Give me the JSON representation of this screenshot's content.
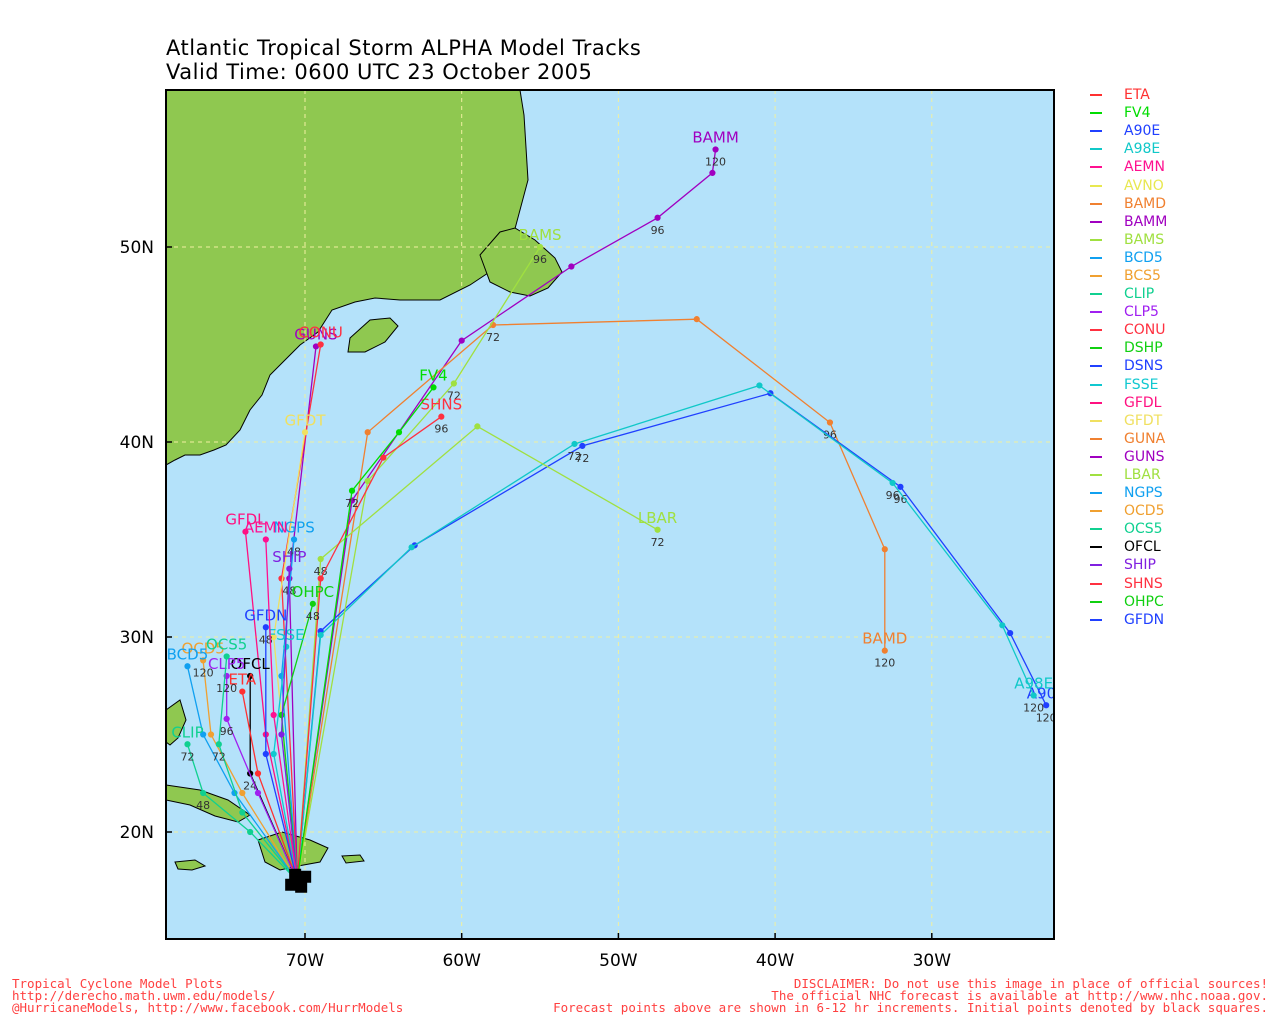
{
  "header": {
    "title_line1": "Atlantic Tropical Storm ALPHA Model Tracks",
    "title_line2": "Valid Time: 0600 UTC 23 October 2005"
  },
  "map": {
    "lon_labels": [
      "70W",
      "60W",
      "50W",
      "40W",
      "30W"
    ],
    "lat_labels": [
      "50N",
      "40N",
      "30N",
      "20N"
    ],
    "ocean_color": "#b4e2fa",
    "land_color": "#8fc850",
    "grid_color": "#f0f0a0"
  },
  "legend": [
    {
      "name": "ETA",
      "color": "#ff3030"
    },
    {
      "name": "FV4",
      "color": "#00dd00"
    },
    {
      "name": "A90E",
      "color": "#2040ff"
    },
    {
      "name": "A98E",
      "color": "#10c8c8"
    },
    {
      "name": "AEMN",
      "color": "#ff1090"
    },
    {
      "name": "AVNO",
      "color": "#e8e850"
    },
    {
      "name": "BAMD",
      "color": "#f08030"
    },
    {
      "name": "BAMM",
      "color": "#a000c0"
    },
    {
      "name": "BAMS",
      "color": "#a0e040"
    },
    {
      "name": "BCD5",
      "color": "#10a0f0"
    },
    {
      "name": "BCS5",
      "color": "#f0a030"
    },
    {
      "name": "CLIP",
      "color": "#10d090"
    },
    {
      "name": "CLP5",
      "color": "#a020f0"
    },
    {
      "name": "CONU",
      "color": "#ff3040"
    },
    {
      "name": "DSHP",
      "color": "#10d010"
    },
    {
      "name": "DSNS",
      "color": "#2040ff"
    },
    {
      "name": "FSSE",
      "color": "#10c8d0"
    },
    {
      "name": "GFDL",
      "color": "#ff1080"
    },
    {
      "name": "GFDT",
      "color": "#f0e060"
    },
    {
      "name": "GUNA",
      "color": "#f08030"
    },
    {
      "name": "GUNS",
      "color": "#a000c0"
    },
    {
      "name": "LBAR",
      "color": "#a0e040"
    },
    {
      "name": "NGPS",
      "color": "#10a0f0"
    },
    {
      "name": "OCD5",
      "color": "#f0a030"
    },
    {
      "name": "OCS5",
      "color": "#10d090"
    },
    {
      "name": "OFCL",
      "color": "#000000"
    },
    {
      "name": "SHIP",
      "color": "#8020e0"
    },
    {
      "name": "SHNS",
      "color": "#ff3040"
    },
    {
      "name": "OHPC",
      "color": "#10d010"
    },
    {
      "name": "GFDN",
      "color": "#2040ff"
    }
  ],
  "tracks": [
    {
      "name": "BAMM",
      "color": "#a000c0",
      "label": "BAMM",
      "points": [
        [
          -70.5,
          17.5
        ],
        [
          -67,
          37
        ],
        [
          -60,
          45.2
        ],
        [
          -53,
          49
        ],
        [
          -47.5,
          51.5
        ],
        [
          -44,
          53.8
        ],
        [
          -43.8,
          55
        ]
      ],
      "hours": [
        [
          "96",
          -47.5,
          51.5
        ],
        [
          "120",
          -43.8,
          55
        ]
      ]
    },
    {
      "name": "BAMD",
      "color": "#f08030",
      "label": "BAMD",
      "points": [
        [
          -70.5,
          17.5
        ],
        [
          -66,
          40.5
        ],
        [
          -58,
          46
        ],
        [
          -45,
          46.3
        ],
        [
          -36.5,
          41
        ],
        [
          -33,
          34.5
        ],
        [
          -33,
          29.3
        ]
      ],
      "hours": [
        [
          "72",
          -58,
          46
        ],
        [
          "96",
          -36.5,
          41
        ],
        [
          "120",
          -33,
          29.3
        ]
      ]
    },
    {
      "name": "A90E",
      "color": "#2040ff",
      "label": "A90E",
      "points": [
        [
          -70.5,
          17.5
        ],
        [
          -69,
          30.3
        ],
        [
          -63,
          34.7
        ],
        [
          -52.3,
          39.8
        ],
        [
          -40.3,
          42.5
        ],
        [
          -32,
          37.7
        ],
        [
          -25,
          30.2
        ],
        [
          -22.7,
          26.5
        ]
      ],
      "hours": [
        [
          "72",
          -52.3,
          39.8
        ],
        [
          "96",
          -32,
          37.7
        ],
        [
          "120",
          -22.7,
          26.5
        ]
      ]
    },
    {
      "name": "A98E",
      "color": "#10c8c8",
      "label": "A98E",
      "points": [
        [
          -70.5,
          17.5
        ],
        [
          -69,
          30.1
        ],
        [
          -63.2,
          34.6
        ],
        [
          -52.8,
          39.9
        ],
        [
          -41,
          42.9
        ],
        [
          -32.5,
          37.9
        ],
        [
          -25.5,
          30.6
        ],
        [
          -23.5,
          27
        ]
      ],
      "hours": [
        [
          "72",
          -52.8,
          39.9
        ],
        [
          "96",
          -32.5,
          37.9
        ],
        [
          "120",
          -23.5,
          27
        ]
      ]
    },
    {
      "name": "LBAR",
      "color": "#a0e040",
      "label": "LBAR",
      "points": [
        [
          -70.5,
          17.5
        ],
        [
          -69,
          34
        ],
        [
          -59,
          40.8
        ],
        [
          -47.5,
          35.5
        ]
      ],
      "hours": [
        [
          "48",
          -69,
          34
        ],
        [
          "72",
          -47.5,
          35.5
        ]
      ]
    },
    {
      "name": "BAMS",
      "color": "#a0e040",
      "label": "BAMS",
      "points": [
        [
          -70.5,
          17.5
        ],
        [
          -66,
          38
        ],
        [
          -60.5,
          43
        ],
        [
          -55,
          50
        ]
      ],
      "hours": [
        [
          "72",
          -60.5,
          43
        ],
        [
          "96",
          -55,
          50
        ]
      ]
    },
    {
      "name": "SHNS",
      "color": "#ff3040",
      "label": "SHNS",
      "points": [
        [
          -70.5,
          17.5
        ],
        [
          -69,
          33
        ],
        [
          -65,
          39.2
        ],
        [
          -61.3,
          41.3
        ]
      ],
      "hours": [
        [
          "96",
          -61.3,
          41.3
        ]
      ]
    },
    {
      "name": "FV4",
      "color": "#00dd00",
      "label": "FV4",
      "points": [
        [
          -70.5,
          17.5
        ],
        [
          -67,
          37.5
        ],
        [
          -64,
          40.5
        ],
        [
          -61.8,
          42.8
        ]
      ],
      "hours": [
        [
          "72",
          -67,
          37.5
        ]
      ]
    },
    {
      "name": "GUNS",
      "color": "#a000c0",
      "label": "GUNS",
      "points": [
        [
          -70.5,
          17.5
        ],
        [
          -71,
          33
        ],
        [
          -69.3,
          44.9
        ]
      ],
      "hours": [
        [
          "48",
          -71,
          33
        ]
      ]
    },
    {
      "name": "CONU",
      "color": "#ff3040",
      "label": "CONU",
      "points": [
        [
          -70.5,
          17.5
        ],
        [
          -71.5,
          33
        ],
        [
          -69,
          45
        ]
      ],
      "hours": []
    },
    {
      "name": "GFDT",
      "color": "#f0e060",
      "label": "GFDT",
      "points": [
        [
          -70.5,
          17.5
        ],
        [
          -72,
          30
        ],
        [
          -70,
          40.5
        ]
      ],
      "hours": []
    },
    {
      "name": "GFDL",
      "color": "#ff1080",
      "label": "GFDL",
      "points": [
        [
          -70.5,
          17.5
        ],
        [
          -72.5,
          25
        ],
        [
          -73.8,
          35.4
        ]
      ],
      "hours": []
    },
    {
      "name": "NGPS",
      "color": "#10a0f0",
      "label": "NGPS",
      "points": [
        [
          -70.5,
          17.5
        ],
        [
          -71.5,
          28
        ],
        [
          -70.7,
          35
        ]
      ],
      "hours": [
        [
          "48",
          -70.7,
          35
        ]
      ]
    },
    {
      "name": "OHPC",
      "color": "#10d010",
      "label": "OHPC",
      "points": [
        [
          -70.5,
          17.5
        ],
        [
          -71.5,
          26
        ],
        [
          -69.5,
          31.7
        ]
      ],
      "hours": [
        [
          "48",
          -69.5,
          31.7
        ]
      ]
    },
    {
      "name": "FSSE",
      "color": "#10c8d0",
      "label": "FSSE",
      "points": [
        [
          -70.5,
          17.5
        ],
        [
          -72,
          24
        ],
        [
          -71.2,
          29.5
        ]
      ],
      "hours": []
    },
    {
      "name": "GFDN",
      "color": "#2040ff",
      "label": "GFDN",
      "points": [
        [
          -70.5,
          17.5
        ],
        [
          -72.5,
          24
        ],
        [
          -72.5,
          30.5
        ]
      ],
      "hours": [
        [
          "48",
          -72.5,
          30.5
        ]
      ]
    },
    {
      "name": "OFCL",
      "color": "#000000",
      "label": "OFCL",
      "points": [
        [
          -70.5,
          17.5
        ],
        [
          -73.5,
          23
        ],
        [
          -73.5,
          28
        ]
      ],
      "hours": [
        [
          "24",
          -73.5,
          23
        ]
      ]
    },
    {
      "name": "ETA",
      "color": "#ff3030",
      "label": "ETA",
      "points": [
        [
          -70.5,
          17.5
        ],
        [
          -73,
          23
        ],
        [
          -74,
          27.2
        ]
      ],
      "hours": []
    },
    {
      "name": "CLP5",
      "color": "#a020f0",
      "label": "CLP5",
      "points": [
        [
          -70.5,
          17.5
        ],
        [
          -73,
          22
        ],
        [
          -75,
          25.8
        ],
        [
          -75,
          28
        ]
      ],
      "hours": [
        [
          "96",
          -75,
          25.8
        ],
        [
          "120",
          -75,
          28
        ]
      ]
    },
    {
      "name": "OCD5",
      "color": "#f0a030",
      "label": "OCD5",
      "points": [
        [
          -70.5,
          17.5
        ],
        [
          -74,
          22
        ],
        [
          -76,
          25
        ],
        [
          -76.5,
          28.8
        ]
      ],
      "hours": [
        [
          "120",
          -76.5,
          28.8
        ]
      ]
    },
    {
      "name": "BCD5",
      "color": "#10a0f0",
      "label": "BCD5",
      "points": [
        [
          -70.5,
          17.5
        ],
        [
          -74.5,
          22
        ],
        [
          -76.5,
          25
        ],
        [
          -77.5,
          28.5
        ]
      ],
      "hours": []
    },
    {
      "name": "CLIP",
      "color": "#10d090",
      "label": "CLIP",
      "points": [
        [
          -70.5,
          17.5
        ],
        [
          -73.5,
          20
        ],
        [
          -76.5,
          22
        ],
        [
          -77.5,
          24.5
        ]
      ],
      "hours": [
        [
          "48",
          -76.5,
          22
        ],
        [
          "72",
          -77.5,
          24.5
        ]
      ]
    },
    {
      "name": "OCS5",
      "color": "#10d090",
      "label": "OCS5",
      "points": [
        [
          -70.5,
          17.5
        ],
        [
          -74,
          21
        ],
        [
          -75.5,
          24.5
        ],
        [
          -75,
          29
        ]
      ],
      "hours": [
        [
          "72",
          -75.5,
          24.5
        ]
      ]
    },
    {
      "name": "SHIP",
      "color": "#8020e0",
      "label": "SHIP",
      "points": [
        [
          -70.5,
          17.5
        ],
        [
          -71.5,
          25
        ],
        [
          -71,
          33.5
        ]
      ],
      "hours": []
    },
    {
      "name": "AEMN",
      "color": "#ff1090",
      "label": "AEMN",
      "points": [
        [
          -70.5,
          17.5
        ],
        [
          -72,
          26
        ],
        [
          -72.5,
          35
        ]
      ],
      "hours": []
    }
  ],
  "footer": {
    "left_line1": "Tropical Cyclone Model Plots",
    "left_line2": "http://derecho.math.uwm.edu/models/",
    "left_line3": "@HurricaneModels, http://www.facebook.com/HurrModels",
    "right_line1": "DISCLAIMER: Do not use this image in place of official sources!",
    "right_line2": "The official NHC forecast is available at http://www.nhc.noaa.gov.",
    "right_line3": "Forecast points above are shown in 6-12 hr increments. Initial points denoted by black squares."
  }
}
